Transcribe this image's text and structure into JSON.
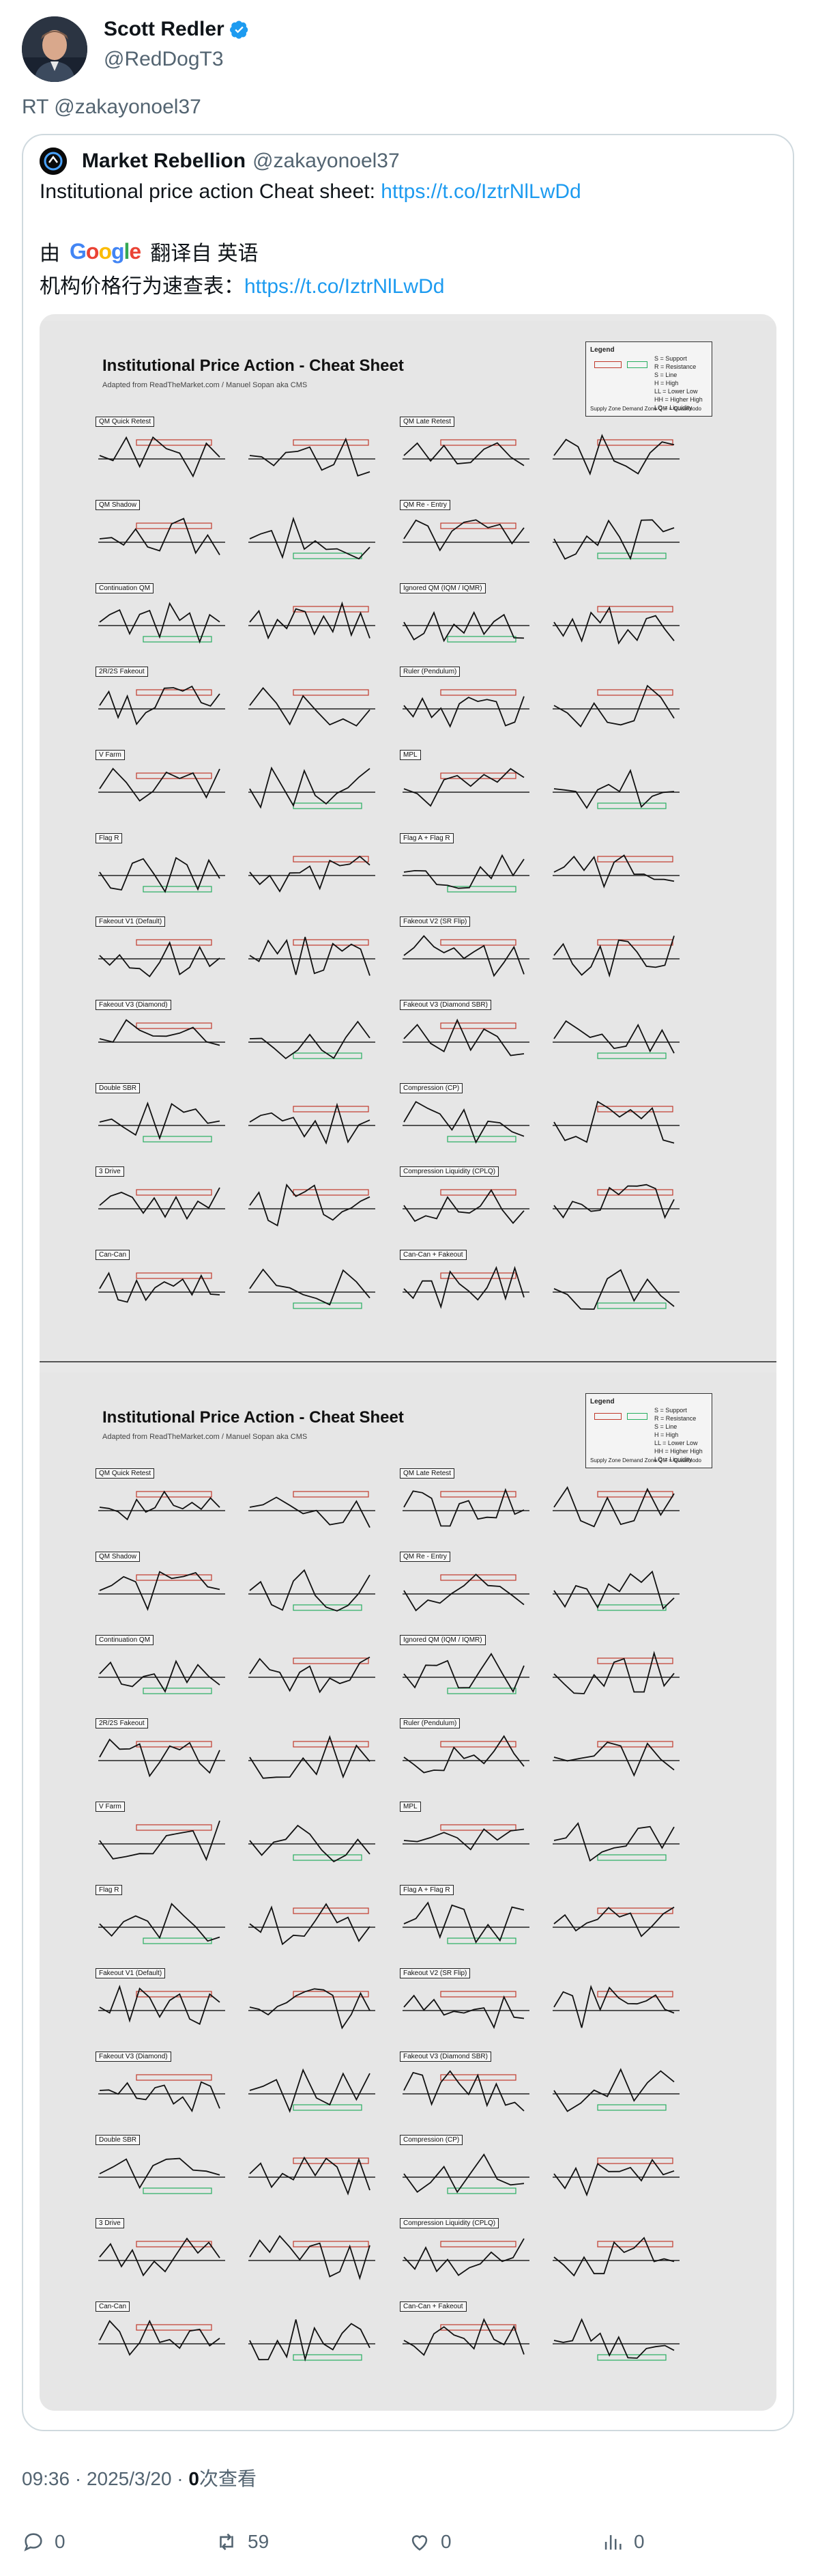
{
  "author": {
    "display_name": "Scott Redler",
    "handle": "@RedDogT3",
    "verified_icon": "verified-badge-icon"
  },
  "retweet_line": "RT @zakayonoel37",
  "quote": {
    "display_name": "Market Rebellion",
    "handle": "@zakayonoel37",
    "text_prefix": "Institutional price action Cheat sheet: ",
    "link": "https://t.co/IztrNlLwDd",
    "translate_by": "由",
    "translate_google": "Google",
    "translate_label": "翻译自 英语",
    "zh_prefix": "机构价格行为速查表：",
    "zh_link": "https://t.co/IztrNlLwDd"
  },
  "sheet": {
    "title": "Institutional Price Action - Cheat Sheet",
    "subtitle": "Adapted from ReadTheMarket.com / Manuel Sopan aka CMS",
    "legend_title": "Legend",
    "legend_items": [
      "S = Support",
      "R = Resistance",
      "S = Line",
      "H = High",
      "LL = Lower Low",
      "HH = Higher High",
      "LQ = Liquidity"
    ],
    "legend_foot": "Supply Zone  Demand Zone  QM = Quasimodo",
    "patterns_left": [
      "QM Quick Retest",
      "QM Shadow",
      "Continuation QM",
      "2R/2S Fakeout",
      "V Farm",
      "Flag R",
      "Fakeout V1 (Default)",
      "Fakeout V3 (Diamond)",
      "Double SBR",
      "3 Drive",
      "Can-Can"
    ],
    "patterns_right": [
      "QM Late Retest",
      "QM Re - Entry",
      "Ignored QM (IQM / IQMR)",
      "Ruler (Pendulum)",
      "MPL",
      "Flag A + Flag R",
      "Fakeout V2 (SR Flip)",
      "Fakeout V3 (Diamond SBR)",
      "Compression (CP)",
      "Compression Liquidity (CPLQ)",
      "Can-Can + Fakeout"
    ]
  },
  "footer": {
    "time": "09:36 · 2025/3/20 · ",
    "views_count": "0",
    "views_label": "次查看"
  },
  "actions": {
    "reply_count": "0",
    "retweet_count": "59",
    "like_count": "0",
    "views_count": "0"
  },
  "colors": {
    "link": "#1d9bf0",
    "secondary_text": "#536471",
    "verified": "#1d9bf0",
    "supply": "#c0392b",
    "demand": "#27ae60"
  }
}
